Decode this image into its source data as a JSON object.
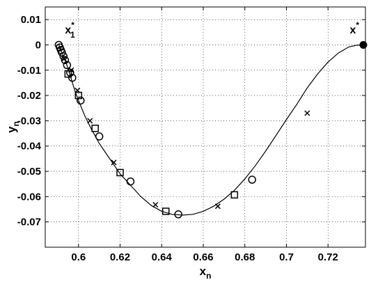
{
  "chart_data": {
    "type": "scatter",
    "title": "",
    "xlabel": {
      "main": "x",
      "sub": "n"
    },
    "ylabel": {
      "main": "y",
      "sub": "n"
    },
    "xlim": [
      0.584,
      0.738
    ],
    "ylim": [
      -0.08,
      0.015
    ],
    "xticks": [
      0.6,
      0.62,
      0.64,
      0.66,
      0.68,
      0.7,
      0.72
    ],
    "xtick_labels": [
      "0.6",
      "0.62",
      "0.64",
      "0.66",
      "0.68",
      "0.7",
      "0.72"
    ],
    "yticks": [
      0.01,
      0,
      -0.01,
      -0.02,
      -0.03,
      -0.04,
      -0.05,
      -0.06,
      -0.07
    ],
    "ytick_labels": [
      "0.01",
      "0",
      "-0.01",
      "-0.02",
      "-0.03",
      "-0.04",
      "-0.05",
      "-0.06",
      "-0.07"
    ],
    "grid": true,
    "curve": {
      "x": [
        0.5905,
        0.592,
        0.594,
        0.596,
        0.598,
        0.6,
        0.603,
        0.606,
        0.61,
        0.615,
        0.62,
        0.625,
        0.63,
        0.635,
        0.64,
        0.645,
        0.65,
        0.655,
        0.66,
        0.665,
        0.67,
        0.675,
        0.68,
        0.685,
        0.69,
        0.695,
        0.7,
        0.705,
        0.71,
        0.715,
        0.72,
        0.725,
        0.73,
        0.734,
        0.737
      ],
      "y": [
        0.0,
        -0.003,
        -0.007,
        -0.012,
        -0.0175,
        -0.022,
        -0.028,
        -0.033,
        -0.039,
        -0.045,
        -0.051,
        -0.0555,
        -0.06,
        -0.0635,
        -0.0658,
        -0.067,
        -0.0673,
        -0.067,
        -0.0658,
        -0.0638,
        -0.061,
        -0.0575,
        -0.053,
        -0.0478,
        -0.042,
        -0.0358,
        -0.0295,
        -0.0235,
        -0.017,
        -0.0115,
        -0.0068,
        -0.0032,
        -0.0008,
        -0.0001,
        0.0
      ]
    },
    "circles": {
      "x": [
        0.5905,
        0.591,
        0.5915,
        0.592,
        0.5928,
        0.5935,
        0.5945,
        0.596,
        0.597,
        0.601,
        0.61,
        0.625,
        0.648,
        0.6835
      ],
      "y": [
        0.0,
        -0.001,
        -0.002,
        -0.003,
        -0.0045,
        -0.006,
        -0.008,
        -0.011,
        -0.013,
        -0.022,
        -0.0362,
        -0.054,
        -0.067,
        -0.0533
      ]
    },
    "squares": {
      "x": [
        0.595,
        0.6,
        0.608,
        0.62,
        0.642,
        0.675
      ],
      "y": [
        -0.0115,
        -0.02,
        -0.033,
        -0.0505,
        -0.0658,
        -0.0593
      ]
    },
    "crosses": {
      "x": [
        0.593,
        0.5965,
        0.5995,
        0.6055,
        0.617,
        0.637,
        0.667,
        0.71
      ],
      "y": [
        -0.0055,
        -0.01,
        -0.018,
        -0.03,
        -0.0465,
        -0.0632,
        -0.0638,
        -0.027
      ]
    },
    "endpoint": {
      "x": 0.737,
      "y": 0.0
    },
    "annotations": [
      {
        "text": "x",
        "sub": "1",
        "sup": "*",
        "x": 0.5935,
        "y": 0.0045,
        "anchor": "start"
      },
      {
        "text": "x",
        "sub": "",
        "sup": "*",
        "x": 0.735,
        "y": 0.0045,
        "anchor": "end"
      }
    ]
  }
}
